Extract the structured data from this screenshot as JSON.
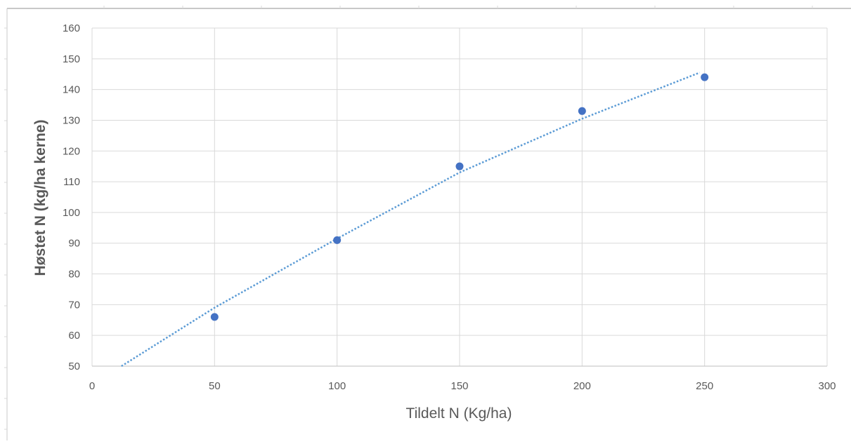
{
  "chart_data": {
    "type": "scatter",
    "xlabel": "Tildelt N (Kg/ha)",
    "ylabel": "Høstet N (kg/ha kerne)",
    "xlim": [
      0,
      300
    ],
    "ylim": [
      50,
      160
    ],
    "x_ticks": [
      0,
      50,
      100,
      150,
      200,
      250,
      300
    ],
    "y_ticks": [
      50,
      60,
      70,
      80,
      90,
      100,
      110,
      120,
      130,
      140,
      150,
      160
    ],
    "grid": true,
    "legend": "none",
    "series": [
      {
        "x": [
          50,
          100,
          150,
          200,
          250
        ],
        "y": [
          66,
          91,
          115,
          133,
          144
        ],
        "color": "#4472C4",
        "marker": "circle"
      }
    ],
    "trendline": {
      "style": "dotted",
      "color": "#5B9BD5",
      "points": [
        [
          12,
          50
        ],
        [
          50,
          69
        ],
        [
          100,
          91.5
        ],
        [
          150,
          113
        ],
        [
          200,
          130.5
        ],
        [
          248,
          145.5
        ]
      ]
    }
  }
}
